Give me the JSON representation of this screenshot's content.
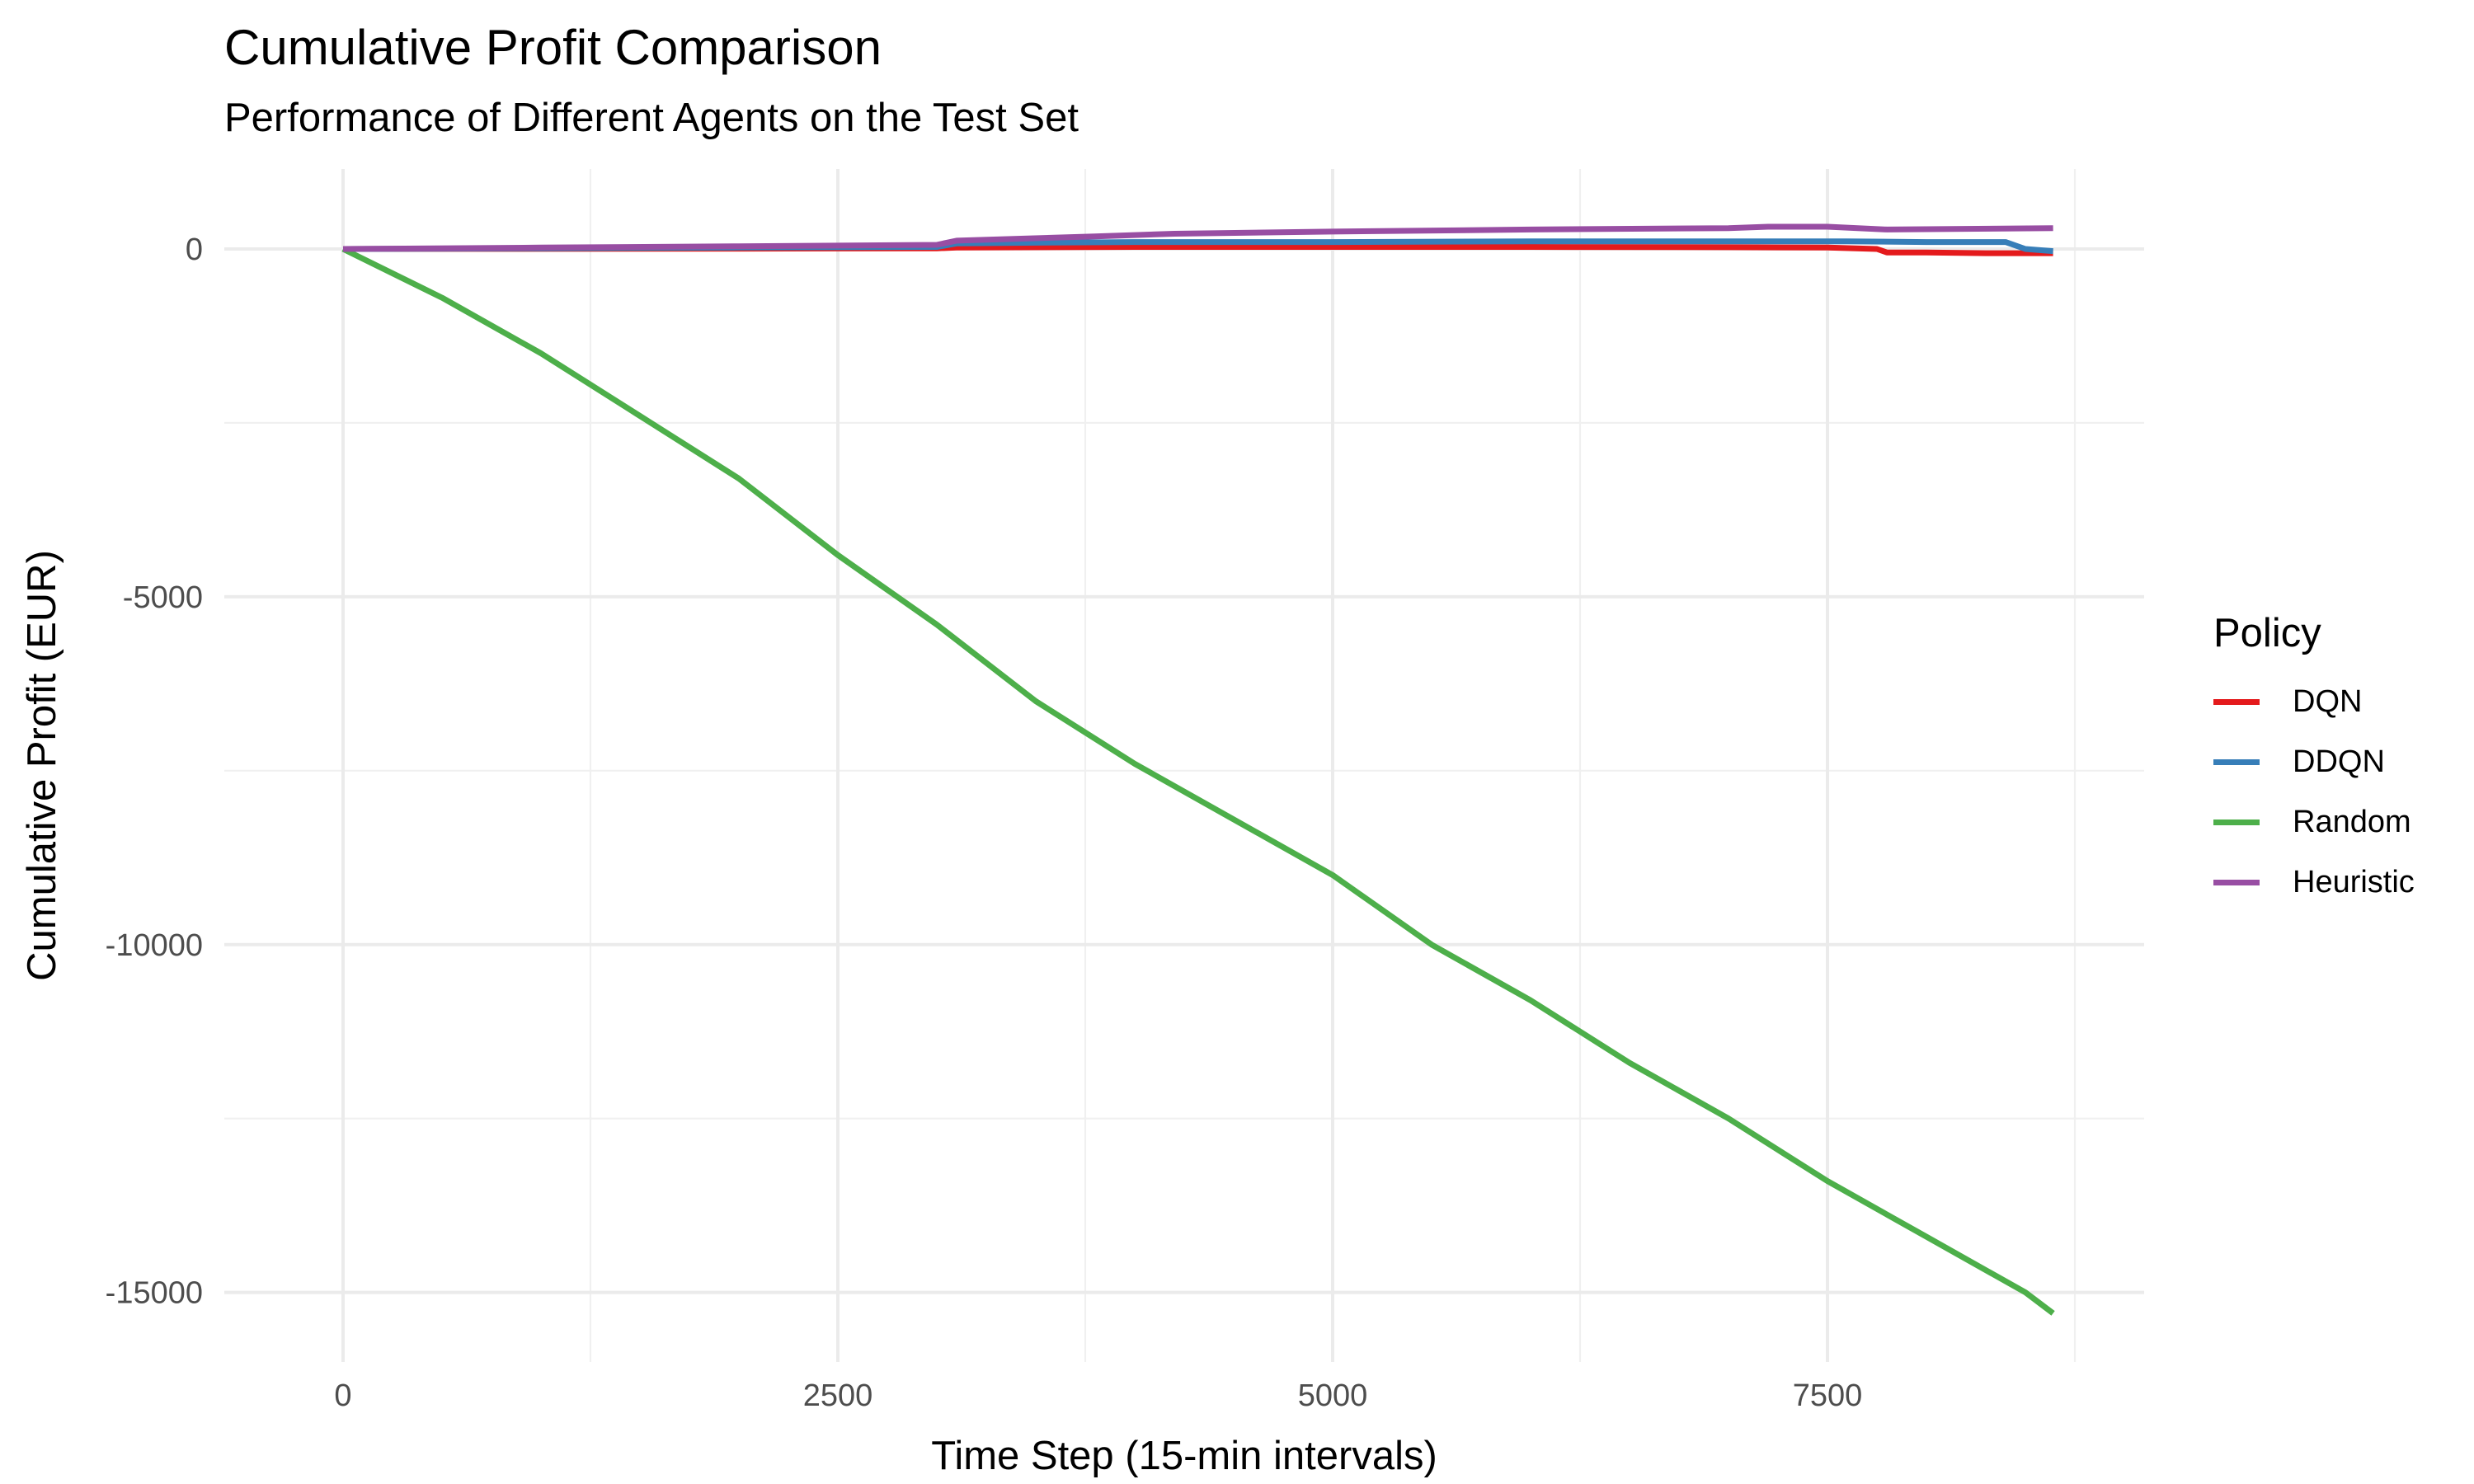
{
  "chart_data": {
    "type": "line",
    "title": "Cumulative Profit Comparison",
    "subtitle": "Performance of Different Agents on the Test Set",
    "xlabel": "Time Step (15-min intervals)",
    "ylabel": "Cumulative Profit (EUR)",
    "xlim": [
      -600,
      9100
    ],
    "ylim": [
      -16000,
      1150
    ],
    "x_ticks": [
      0,
      2500,
      5000,
      7500
    ],
    "x_tick_labels": [
      "0",
      "2500",
      "5000",
      "7500"
    ],
    "y_ticks": [
      0,
      -5000,
      -10000,
      -15000
    ],
    "y_tick_labels": [
      "0",
      "-5000",
      "-10000",
      "-15000"
    ],
    "grid": true,
    "legend_title": "Policy",
    "legend_position": "right",
    "series": [
      {
        "name": "DQN",
        "color": "#E41A1C",
        "x": [
          0,
          2000,
          3000,
          3100,
          4000,
          5000,
          6000,
          7000,
          7500,
          7750,
          7800,
          8000,
          8300,
          8640
        ],
        "y": [
          0,
          5,
          10,
          20,
          30,
          30,
          30,
          25,
          20,
          0,
          -50,
          -50,
          -60,
          -60
        ]
      },
      {
        "name": "DDQN",
        "color": "#377EB8",
        "x": [
          0,
          1000,
          2000,
          3000,
          3100,
          3500,
          4000,
          5000,
          6000,
          7000,
          7600,
          8000,
          8400,
          8500,
          8640
        ],
        "y": [
          0,
          10,
          20,
          30,
          80,
          90,
          100,
          100,
          110,
          110,
          110,
          100,
          100,
          0,
          -30
        ]
      },
      {
        "name": "Random",
        "color": "#4DAF4A",
        "x": [
          0,
          500,
          1000,
          1500,
          2000,
          2500,
          3000,
          3500,
          4000,
          4500,
          5000,
          5500,
          6000,
          6500,
          7000,
          7500,
          8000,
          8500,
          8640
        ],
        "y": [
          0,
          -700,
          -1500,
          -2400,
          -3300,
          -4400,
          -5400,
          -6500,
          -7400,
          -8200,
          -9000,
          -10000,
          -10800,
          -11700,
          -12500,
          -13400,
          -14200,
          -15000,
          -15300
        ]
      },
      {
        "name": "Heuristic",
        "color": "#984EA3",
        "x": [
          0,
          1000,
          2000,
          3000,
          3100,
          3800,
          4200,
          5000,
          6000,
          7000,
          7200,
          7500,
          7800,
          8640
        ],
        "y": [
          0,
          20,
          40,
          60,
          120,
          180,
          220,
          250,
          280,
          300,
          320,
          320,
          280,
          300
        ]
      }
    ]
  }
}
